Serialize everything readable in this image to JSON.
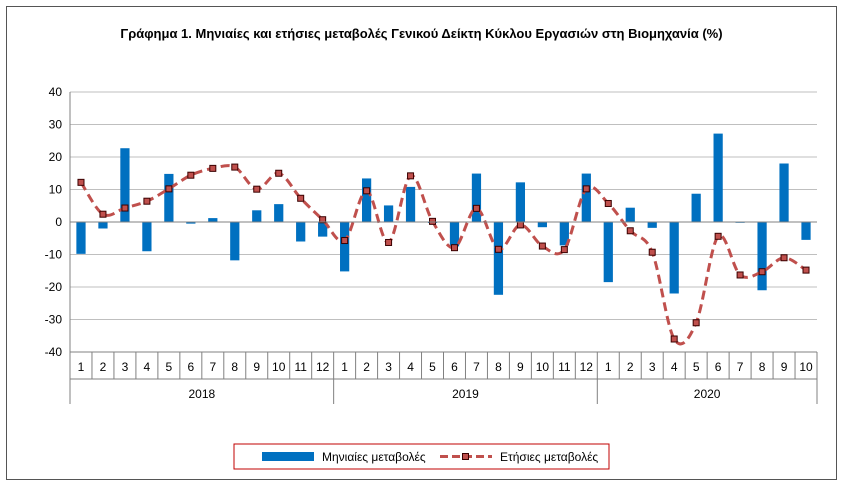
{
  "chart_data": {
    "type": "bar+line",
    "title": "Γράφημα 1. Μηνιαίες και ετήσιες μεταβολές  Γενικού Δείκτη Κύκλου Εργασιών στη Βιομηχανία (%)",
    "ylim": [
      -40,
      40
    ],
    "yticks": [
      "40",
      "30",
      "20",
      "10",
      "0",
      "-10",
      "-20",
      "-30",
      "-40"
    ],
    "grid": true,
    "legend_position": "bottom",
    "categories": [
      "1",
      "2",
      "3",
      "4",
      "5",
      "6",
      "7",
      "8",
      "9",
      "10",
      "11",
      "12",
      "1",
      "2",
      "3",
      "4",
      "5",
      "6",
      "7",
      "8",
      "9",
      "10",
      "11",
      "12",
      "1",
      "2",
      "3",
      "4",
      "5",
      "6",
      "7",
      "8",
      "9",
      "10"
    ],
    "years": [
      {
        "label": "2018",
        "months": 12
      },
      {
        "label": "2019",
        "months": 12
      },
      {
        "label": "2020",
        "months": 10
      }
    ],
    "series": [
      {
        "name": "Μηνιαίες μεταβολές",
        "kind": "bar",
        "color": "#0070c0",
        "values": [
          -9.8,
          -2.0,
          22.7,
          -9.0,
          14.8,
          -0.5,
          1.2,
          -11.8,
          3.6,
          5.5,
          -6.0,
          -4.5,
          -15.2,
          13.4,
          5.1,
          10.8,
          -0.3,
          -7.5,
          14.9,
          -22.4,
          12.2,
          -1.6,
          -7.2,
          14.9,
          -18.5,
          4.4,
          -1.8,
          -22.0,
          8.7,
          27.2,
          -0.2,
          -21.0,
          18.0,
          -5.5
        ]
      },
      {
        "name": "Ετήσιες μεταβολές",
        "kind": "line",
        "color": "#c0504d",
        "marker_color": "#8b0000",
        "values": [
          12.2,
          2.4,
          4.3,
          6.4,
          10.2,
          14.4,
          16.5,
          16.9,
          10.1,
          15.0,
          7.3,
          0.7,
          -5.7,
          9.6,
          -6.3,
          14.2,
          0.2,
          -7.9,
          4.2,
          -8.4,
          -0.9,
          -7.4,
          -8.5,
          10.2,
          5.7,
          -2.7,
          -9.3,
          -36.0,
          -31.0,
          -4.4,
          -16.3,
          -15.3,
          -11.0,
          -14.8
        ]
      }
    ]
  }
}
